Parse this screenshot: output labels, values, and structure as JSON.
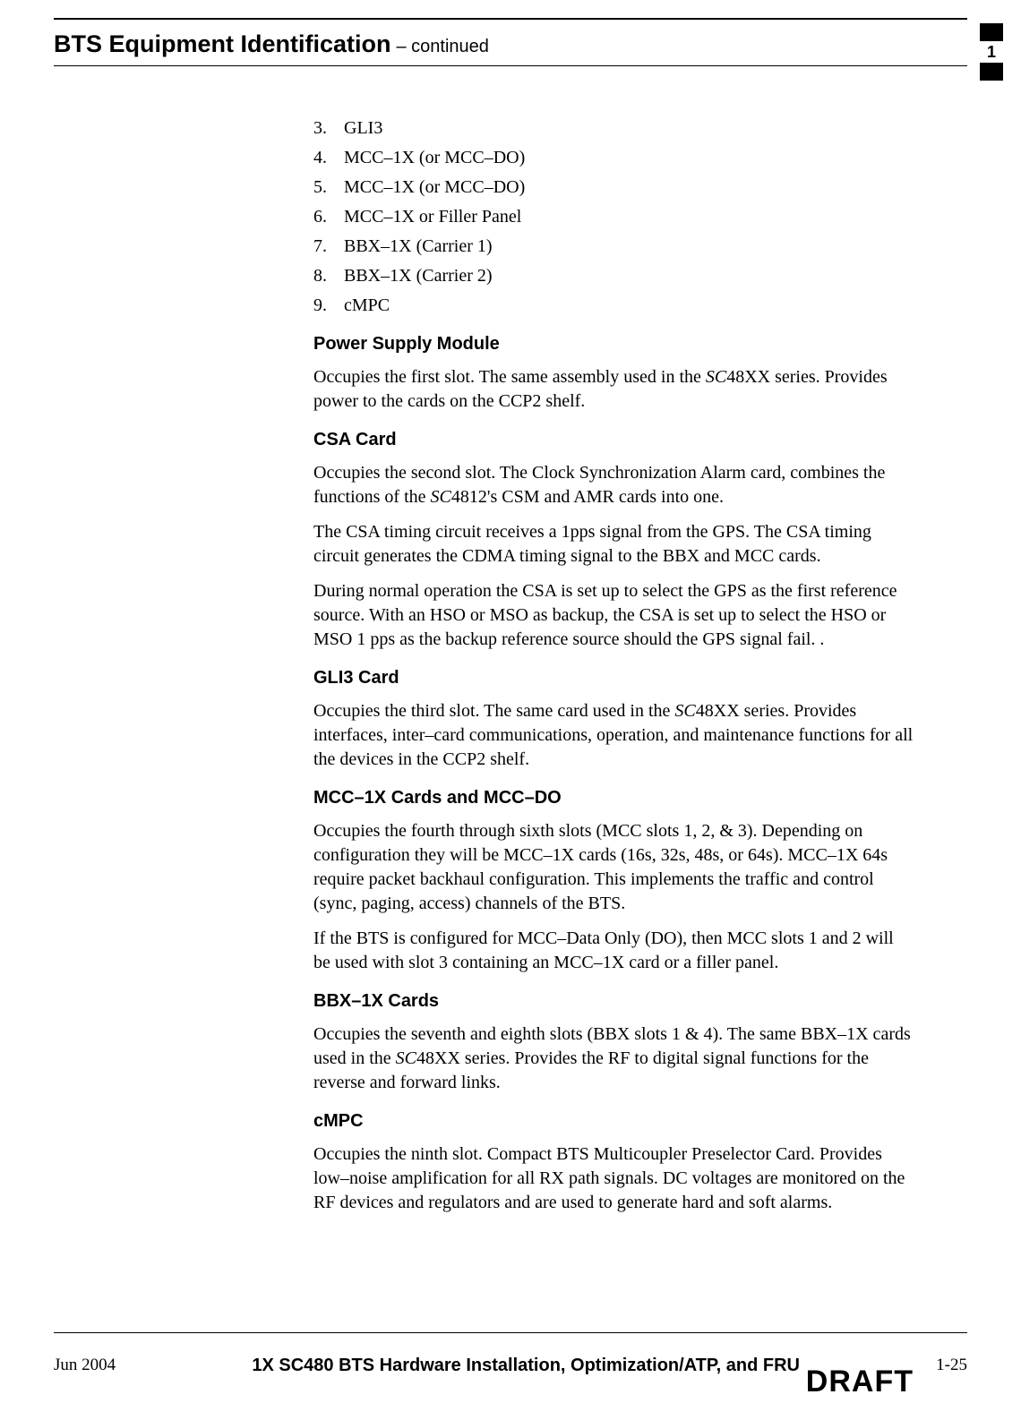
{
  "header": {
    "title": "BTS Equipment Identification",
    "continued": " – continued"
  },
  "side_tab": {
    "chapter": "1"
  },
  "list": {
    "items": [
      {
        "n": "3.",
        "t": "GLI3"
      },
      {
        "n": "4.",
        "t": "MCC–1X (or MCC–DO)"
      },
      {
        "n": "5.",
        "t": "MCC–1X (or MCC–DO)"
      },
      {
        "n": "6.",
        "t": "MCC–1X or Filler Panel"
      },
      {
        "n": "7.",
        "t": "BBX–1X (Carrier 1)"
      },
      {
        "n": "8.",
        "t": "BBX–1X (Carrier 2)"
      },
      {
        "n": "9.",
        "t": "cMPC"
      }
    ]
  },
  "sections": {
    "psm": {
      "h": "Power Supply Module",
      "p1a": "Occupies the first slot. The same assembly used in the ",
      "p1b": "SC",
      "p1c": "48XX series. Provides power to the cards on the CCP2 shelf."
    },
    "csa": {
      "h": "CSA Card",
      "p1a": "Occupies the second slot. The Clock Synchronization Alarm card, combines the functions of the ",
      "p1b": "SC",
      "p1c": "4812's CSM and AMR cards into one.",
      "p2": "The CSA timing circuit receives a 1pps signal from the GPS. The CSA timing circuit generates the CDMA timing signal to the BBX and MCC cards.",
      "p3": "During normal operation the CSA is set up to select the GPS as the first reference source. With an HSO or MSO as backup, the CSA is set up to select the HSO or MSO 1 pps as the backup reference source should the GPS signal fail. ."
    },
    "gli3": {
      "h": "GLI3 Card",
      "p1a": "Occupies the third slot. The same card used in the ",
      "p1b": "SC",
      "p1c": "48XX series. Provides interfaces, inter–card communications, operation, and maintenance functions for all the devices in the CCP2 shelf."
    },
    "mcc": {
      "h": "MCC–1X Cards and MCC–DO",
      "p1": "Occupies the fourth through sixth slots (MCC slots 1, 2, & 3). Depending on configuration they will be MCC–1X cards (16s, 32s, 48s, or 64s).  MCC–1X 64s require packet backhaul configuration.  This implements the traffic and control (sync, paging, access) channels of the BTS.",
      "p2": "If the BTS is configured for MCC–Data Only (DO), then MCC slots 1 and 2 will be used with slot 3 containing an MCC–1X card or a filler panel."
    },
    "bbx": {
      "h": "BBX–1X Cards",
      "p1a": "Occupies the seventh and eighth slots (BBX slots 1 & 4).  The same BBX–1X cards used in the ",
      "p1b": "SC",
      "p1c": "48XX series. Provides the RF to digital signal functions for the reverse and forward links."
    },
    "cmpc": {
      "h": "cMPC",
      "p1": "Occupies the ninth slot. Compact BTS Multicoupler Preselector Card. Provides low–noise amplification for all RX path signals. DC voltages are monitored on the RF devices and regulators and are used to generate hard and soft alarms."
    }
  },
  "footer": {
    "date": "Jun 2004",
    "title": "1X SC480 BTS Hardware Installation, Optimization/ATP, and FRU",
    "page": "1-25",
    "watermark": "DRAFT"
  }
}
